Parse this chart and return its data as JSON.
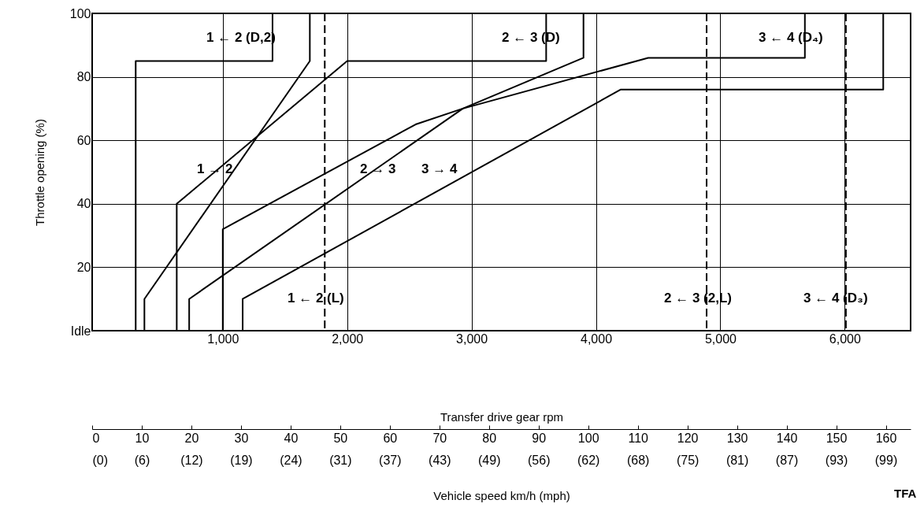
{
  "chart_data": {
    "type": "line",
    "xlabel": "Transfer drive gear rpm",
    "ylabel": "Throttle opening (%)",
    "x2label": "Vehicle speed km/h (mph)",
    "xlim": [
      -50,
      6530
    ],
    "xticks": [
      {
        "value": 1000,
        "label": "1,000"
      },
      {
        "value": 2000,
        "label": "2,000"
      },
      {
        "value": 3000,
        "label": "3,000"
      },
      {
        "value": 4000,
        "label": "4,000"
      },
      {
        "value": 5000,
        "label": "5,000"
      },
      {
        "value": 6000,
        "label": "6,000"
      }
    ],
    "ylim": [
      0,
      100
    ],
    "yticks": [
      {
        "value": 0,
        "label": "Idle"
      },
      20,
      40,
      60,
      80,
      100
    ],
    "x2lim": [
      0,
      165
    ],
    "x2ticks": [
      0,
      10,
      20,
      30,
      40,
      50,
      60,
      70,
      80,
      90,
      100,
      110,
      120,
      130,
      140,
      150,
      160
    ],
    "grid": true,
    "marker": "none",
    "line_style": "solid",
    "series": [
      {
        "color": "#000000",
        "x": [
          300,
          300,
          1400,
          1400
        ],
        "values": [
          0,
          85,
          85,
          100
        ]
      },
      {
        "color": "#000000",
        "x": [
          370,
          370,
          1700,
          1700
        ],
        "values": [
          0,
          10,
          85,
          100
        ]
      },
      {
        "color": "#000000",
        "x": [
          630,
          630,
          2000,
          3600,
          3600
        ],
        "values": [
          0,
          40,
          85,
          85,
          100
        ]
      },
      {
        "color": "#000000",
        "x": [
          1000,
          1000,
          2550,
          2930,
          4420,
          5680,
          5680
        ],
        "values": [
          0,
          32,
          65,
          70,
          86,
          86,
          100
        ]
      },
      {
        "color": "#000000",
        "x": [
          730,
          730,
          2930,
          3900,
          3900
        ],
        "values": [
          0,
          10,
          70,
          86,
          100
        ]
      },
      {
        "color": "#000000",
        "x": [
          1160,
          1160,
          4200,
          6310,
          6310
        ],
        "values": [
          0,
          10,
          76,
          76,
          100
        ]
      }
    ],
    "ref_lines": [
      {
        "axis": "x",
        "value": 1820,
        "line_style": "dashed",
        "color": "#000000"
      },
      {
        "axis": "x",
        "value": 4890,
        "line_style": "dashed",
        "color": "#000000"
      },
      {
        "axis": "x",
        "value": 6010,
        "line_style": "dashed",
        "color": "#000000"
      }
    ],
    "annotations": [
      "1 ← 2 (D,2)",
      "2 ← 3 (D)",
      "3 ← 4 (D₄)",
      "1 → 2",
      "2 → 3",
      "3 → 4",
      "1 ← 2 (L)",
      "2 ← 3 (2,L)",
      "3 ← 4 (D₃)",
      "TFA",
      "(0)",
      "(6)",
      "(12)",
      "(19)",
      "(24)",
      "(31)",
      "(37)",
      "(43)",
      "(49)",
      "(56)",
      "(62)",
      "(68)",
      "(75)",
      "(81)",
      "(87)",
      "(93)",
      "(99)"
    ]
  }
}
